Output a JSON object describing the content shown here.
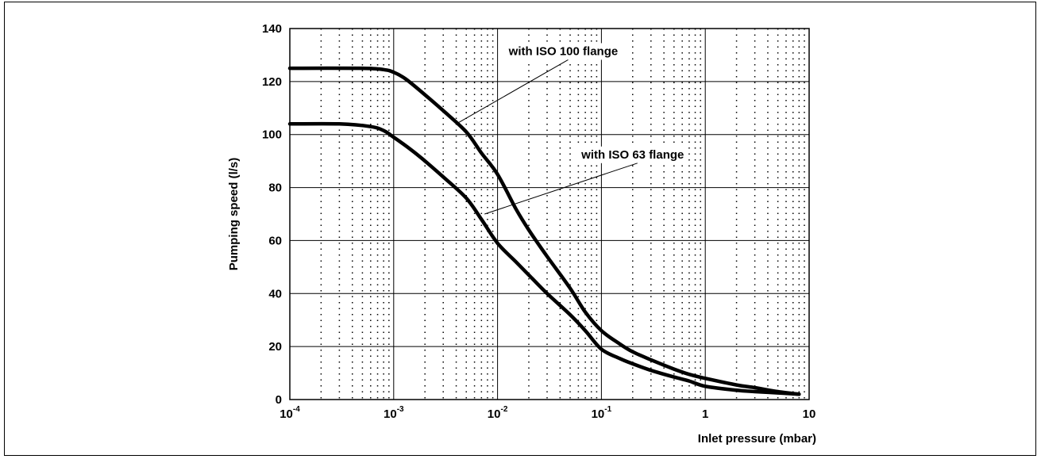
{
  "chart_data": {
    "type": "line",
    "title": "",
    "xlabel": "Inlet pressure (mbar)",
    "ylabel": "Pumping speed (l/s)",
    "xscale": "log",
    "xlim": [
      0.0001,
      10
    ],
    "ylim": [
      0,
      140
    ],
    "grid": true,
    "legend": "none",
    "x_ticks": [
      {
        "base": "10",
        "exp": "-4",
        "value": 0.0001
      },
      {
        "base": "10",
        "exp": "-3",
        "value": 0.001
      },
      {
        "base": "10",
        "exp": "-2",
        "value": 0.01
      },
      {
        "base": "10",
        "exp": "-1",
        "value": 0.1
      },
      {
        "base": "1",
        "exp": "",
        "value": 1
      },
      {
        "base": "10",
        "exp": "",
        "value": 10
      }
    ],
    "y_ticks": [
      "0",
      "20",
      "40",
      "60",
      "80",
      "100",
      "120",
      "140"
    ],
    "series": [
      {
        "name": "with ISO 100 flange",
        "points": [
          [
            0.0001,
            125
          ],
          [
            0.0005,
            125
          ],
          [
            0.0008,
            124.5
          ],
          [
            0.001,
            123.5
          ],
          [
            0.0013,
            121
          ],
          [
            0.002,
            115
          ],
          [
            0.003,
            109
          ],
          [
            0.005,
            101
          ],
          [
            0.007,
            93
          ],
          [
            0.01,
            85
          ],
          [
            0.015,
            72
          ],
          [
            0.02,
            64
          ],
          [
            0.03,
            54
          ],
          [
            0.05,
            42
          ],
          [
            0.07,
            33
          ],
          [
            0.1,
            26
          ],
          [
            0.15,
            21
          ],
          [
            0.2,
            18
          ],
          [
            0.3,
            15
          ],
          [
            0.5,
            11.5
          ],
          [
            0.7,
            9.5
          ],
          [
            1,
            8
          ],
          [
            2,
            5.5
          ],
          [
            3,
            4.5
          ],
          [
            5,
            3
          ],
          [
            8,
            2
          ]
        ]
      },
      {
        "name": "with ISO 63 flange",
        "points": [
          [
            0.0001,
            104
          ],
          [
            0.0003,
            104
          ],
          [
            0.0006,
            103
          ],
          [
            0.0008,
            101.5
          ],
          [
            0.001,
            99
          ],
          [
            0.0015,
            94
          ],
          [
            0.002,
            90
          ],
          [
            0.003,
            84
          ],
          [
            0.005,
            76
          ],
          [
            0.007,
            68
          ],
          [
            0.01,
            59
          ],
          [
            0.015,
            52
          ],
          [
            0.02,
            47
          ],
          [
            0.03,
            40
          ],
          [
            0.05,
            32
          ],
          [
            0.07,
            26
          ],
          [
            0.1,
            19
          ],
          [
            0.15,
            15.5
          ],
          [
            0.2,
            13.5
          ],
          [
            0.3,
            11
          ],
          [
            0.5,
            8.5
          ],
          [
            0.7,
            7
          ],
          [
            1,
            5
          ],
          [
            2,
            3.5
          ],
          [
            3,
            3
          ],
          [
            5,
            2.5
          ],
          [
            8,
            2
          ]
        ]
      }
    ],
    "annotations": [
      {
        "text": "with ISO 100 flange",
        "series": "with ISO 100 flange",
        "label_anchor": [
          0.043,
          130
        ],
        "pointer_to": [
          0.004,
          104
        ]
      },
      {
        "text": "with ISO 63 flange",
        "series": "with ISO 63 flange",
        "label_anchor": [
          0.2,
          91
        ],
        "pointer_to": [
          0.0075,
          70
        ]
      }
    ]
  }
}
